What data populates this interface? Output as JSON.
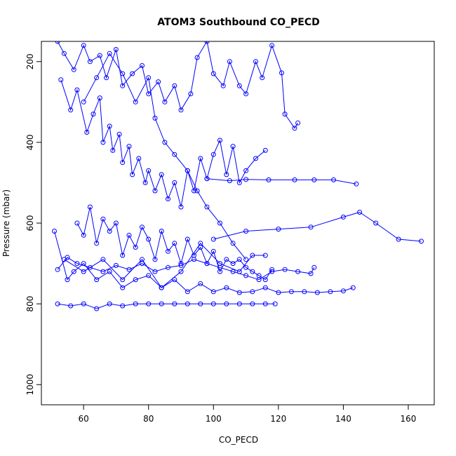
{
  "chart_data": {
    "type": "scatter",
    "title": "ATOM3 Southbound CO_PECD",
    "xlabel": "CO_PECD",
    "ylabel": "Pressure (mbar)",
    "xlim": [
      47,
      168
    ],
    "ylim": [
      1050,
      150
    ],
    "y_reversed": true,
    "x_ticks": [
      60,
      80,
      100,
      120,
      140,
      160
    ],
    "y_ticks": [
      200,
      400,
      600,
      800,
      1000
    ],
    "grid": false,
    "legend": "none",
    "colors": {
      "series": "#0000ff",
      "axes": "#000000"
    },
    "series": [
      {
        "values": [
          [
            52,
            150
          ],
          [
            54,
            180
          ],
          [
            57,
            220
          ],
          [
            60,
            160
          ],
          [
            62,
            200
          ],
          [
            65,
            185
          ],
          [
            67,
            240
          ],
          [
            70,
            170
          ],
          [
            72,
            260
          ],
          [
            75,
            230
          ],
          [
            78,
            210
          ],
          [
            80,
            280
          ],
          [
            83,
            250
          ],
          [
            85,
            300
          ],
          [
            88,
            260
          ],
          [
            90,
            320
          ],
          [
            93,
            280
          ],
          [
            95,
            190
          ],
          [
            98,
            150
          ],
          [
            100,
            230
          ],
          [
            103,
            260
          ],
          [
            105,
            200
          ],
          [
            108,
            260
          ],
          [
            110,
            280
          ],
          [
            113,
            200
          ],
          [
            115,
            240
          ],
          [
            118,
            160
          ],
          [
            121,
            228
          ],
          [
            122,
            330
          ],
          [
            125,
            365
          ],
          [
            126,
            352
          ]
        ]
      },
      {
        "values": [
          [
            53,
            245
          ],
          [
            56,
            320
          ],
          [
            58,
            270
          ],
          [
            61,
            375
          ],
          [
            63,
            330
          ],
          [
            65,
            290
          ],
          [
            66,
            400
          ],
          [
            68,
            360
          ],
          [
            69,
            420
          ],
          [
            71,
            380
          ],
          [
            72,
            450
          ],
          [
            74,
            410
          ],
          [
            75,
            480
          ],
          [
            77,
            440
          ],
          [
            79,
            500
          ],
          [
            80,
            470
          ],
          [
            82,
            520
          ],
          [
            84,
            480
          ],
          [
            86,
            540
          ],
          [
            88,
            500
          ],
          [
            90,
            560
          ],
          [
            92,
            470
          ],
          [
            94,
            520
          ],
          [
            96,
            440
          ],
          [
            98,
            490
          ],
          [
            100,
            430
          ],
          [
            102,
            395
          ],
          [
            104,
            480
          ],
          [
            106,
            410
          ],
          [
            108,
            500
          ],
          [
            110,
            470
          ],
          [
            113,
            440
          ],
          [
            116,
            420
          ]
        ]
      },
      {
        "values": [
          [
            58,
            600
          ],
          [
            60,
            630
          ],
          [
            62,
            560
          ],
          [
            64,
            650
          ],
          [
            66,
            590
          ],
          [
            68,
            620
          ],
          [
            70,
            600
          ],
          [
            72,
            680
          ],
          [
            74,
            630
          ],
          [
            76,
            660
          ],
          [
            78,
            610
          ],
          [
            80,
            640
          ],
          [
            82,
            690
          ],
          [
            84,
            620
          ],
          [
            86,
            670
          ],
          [
            88,
            650
          ],
          [
            90,
            700
          ],
          [
            92,
            640
          ],
          [
            94,
            680
          ],
          [
            96,
            660
          ],
          [
            98,
            700
          ],
          [
            100,
            670
          ],
          [
            102,
            720
          ],
          [
            104,
            690
          ],
          [
            106,
            700
          ],
          [
            108,
            690
          ],
          [
            110,
            710
          ],
          [
            112,
            720
          ],
          [
            114,
            730
          ],
          [
            116,
            740
          ],
          [
            118,
            715
          ]
        ]
      },
      {
        "values": [
          [
            51,
            620
          ],
          [
            55,
            740
          ],
          [
            57,
            720
          ],
          [
            60,
            700
          ],
          [
            64,
            740
          ],
          [
            68,
            720
          ],
          [
            72,
            760
          ],
          [
            76,
            740
          ],
          [
            80,
            730
          ],
          [
            84,
            760
          ],
          [
            88,
            740
          ],
          [
            92,
            770
          ],
          [
            96,
            750
          ],
          [
            100,
            770
          ],
          [
            104,
            760
          ],
          [
            108,
            772
          ],
          [
            112,
            770
          ],
          [
            116,
            760
          ],
          [
            120,
            772
          ],
          [
            124,
            770
          ],
          [
            128,
            770
          ],
          [
            132,
            772
          ],
          [
            136,
            770
          ],
          [
            140,
            768
          ],
          [
            143,
            760
          ]
        ]
      },
      {
        "values": [
          [
            52,
            800
          ],
          [
            56,
            805
          ],
          [
            60,
            800
          ],
          [
            64,
            812
          ],
          [
            68,
            800
          ],
          [
            72,
            805
          ],
          [
            76,
            800
          ],
          [
            80,
            800
          ],
          [
            84,
            800
          ],
          [
            88,
            800
          ],
          [
            92,
            800
          ],
          [
            96,
            800
          ],
          [
            100,
            800
          ],
          [
            104,
            800
          ],
          [
            108,
            800
          ],
          [
            112,
            800
          ],
          [
            116,
            800
          ],
          [
            119,
            800
          ]
        ]
      },
      {
        "values": [
          [
            100,
            640
          ],
          [
            110,
            620
          ],
          [
            120,
            615
          ],
          [
            130,
            610
          ],
          [
            140,
            585
          ],
          [
            145,
            573
          ],
          [
            150,
            600
          ],
          [
            157,
            640
          ],
          [
            164,
            645
          ]
        ]
      },
      {
        "values": [
          [
            98,
            490
          ],
          [
            105,
            495
          ],
          [
            110,
            492
          ],
          [
            117,
            493
          ],
          [
            125,
            493
          ],
          [
            131,
            493
          ],
          [
            137,
            493
          ],
          [
            144,
            503
          ]
        ]
      },
      {
        "values": [
          [
            52,
            715
          ],
          [
            55,
            685
          ],
          [
            58,
            700
          ],
          [
            62,
            710
          ],
          [
            66,
            720
          ],
          [
            70,
            705
          ],
          [
            74,
            715
          ],
          [
            78,
            700
          ],
          [
            82,
            720
          ],
          [
            86,
            710
          ],
          [
            90,
            705
          ],
          [
            94,
            690
          ],
          [
            98,
            700
          ],
          [
            102,
            710
          ],
          [
            106,
            720
          ],
          [
            110,
            730
          ],
          [
            114,
            740
          ],
          [
            118,
            720
          ],
          [
            122,
            715
          ],
          [
            126,
            720
          ],
          [
            130,
            725
          ],
          [
            131,
            710
          ]
        ]
      },
      {
        "values": [
          [
            54,
            690
          ],
          [
            60,
            720
          ],
          [
            66,
            690
          ],
          [
            72,
            740
          ],
          [
            78,
            690
          ],
          [
            84,
            760
          ],
          [
            90,
            720
          ],
          [
            96,
            650
          ],
          [
            102,
            700
          ],
          [
            108,
            720
          ],
          [
            112,
            680
          ],
          [
            116,
            680
          ]
        ]
      },
      {
        "values": [
          [
            60,
            300
          ],
          [
            64,
            240
          ],
          [
            68,
            180
          ],
          [
            72,
            230
          ],
          [
            76,
            300
          ],
          [
            80,
            240
          ],
          [
            82,
            340
          ],
          [
            85,
            400
          ],
          [
            88,
            430
          ],
          [
            92,
            470
          ],
          [
            95,
            520
          ],
          [
            98,
            560
          ],
          [
            102,
            600
          ],
          [
            106,
            650
          ],
          [
            110,
            690
          ]
        ]
      }
    ]
  }
}
